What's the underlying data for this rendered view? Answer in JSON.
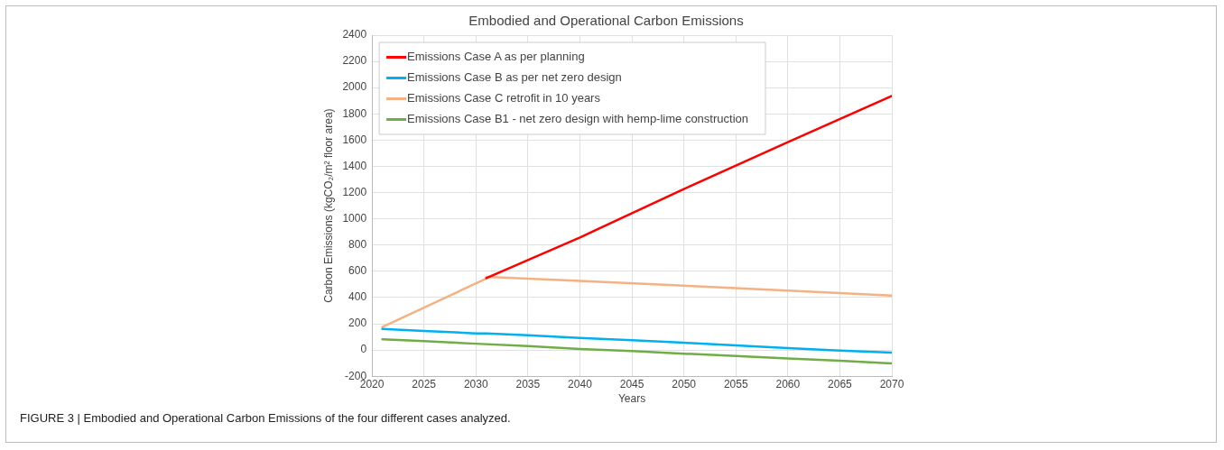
{
  "chart_data": {
    "type": "line",
    "title": "Embodied and Operational Carbon Emissions",
    "xlabel": "Years",
    "ylabel": "Carbon Emissions (kgCO₂/m² floor area)",
    "xlim": [
      2020,
      2070
    ],
    "xticks": [
      2020,
      2025,
      2030,
      2035,
      2040,
      2045,
      2050,
      2055,
      2060,
      2065,
      2070
    ],
    "ylim": [
      -200,
      2400
    ],
    "yticks": [
      -200,
      0,
      200,
      400,
      600,
      800,
      1000,
      1200,
      1400,
      1600,
      1800,
      2000,
      2200,
      2400
    ],
    "grid": true,
    "legend": "top left",
    "marker": "none",
    "line_style": "solid",
    "series": [
      {
        "name": "Emissions Case A as per planning",
        "color": "#ff0000",
        "x": [
          2031,
          2040,
          2050,
          2060,
          2070
        ],
        "values": [
          548,
          858,
          1227,
          1585,
          1936
        ]
      },
      {
        "name": "Emissions Case B as per net zero design",
        "color": "#00b0f0",
        "x": [
          2021,
          2025,
          2030,
          2031,
          2035,
          2040,
          2045,
          2050,
          2055,
          2060,
          2065,
          2070
        ],
        "values": [
          160,
          145,
          127,
          127,
          112,
          92,
          75,
          55,
          35,
          15,
          -5,
          -20
        ]
      },
      {
        "name": "Emissions Case C retrofit in 10 years",
        "color": "#f4b183",
        "x": [
          2021,
          2031,
          2031,
          2040,
          2050,
          2060,
          2070
        ],
        "values": [
          175,
          545,
          558,
          527,
          490,
          452,
          415
        ]
      },
      {
        "name": "Emissions Case B1 - net zero design with hemp-lime construction",
        "color": "#70ad47",
        "x": [
          2021,
          2025,
          2030,
          2035,
          2040,
          2045,
          2050,
          2055,
          2060,
          2065,
          2070
        ],
        "values": [
          82,
          67,
          48,
          30,
          8,
          -8,
          -28,
          -45,
          -65,
          -82,
          -102
        ]
      }
    ],
    "annotations": [
      "FIGURE 3 | Embodied and Operational Carbon Emissions of the four different cases analyzed."
    ]
  }
}
